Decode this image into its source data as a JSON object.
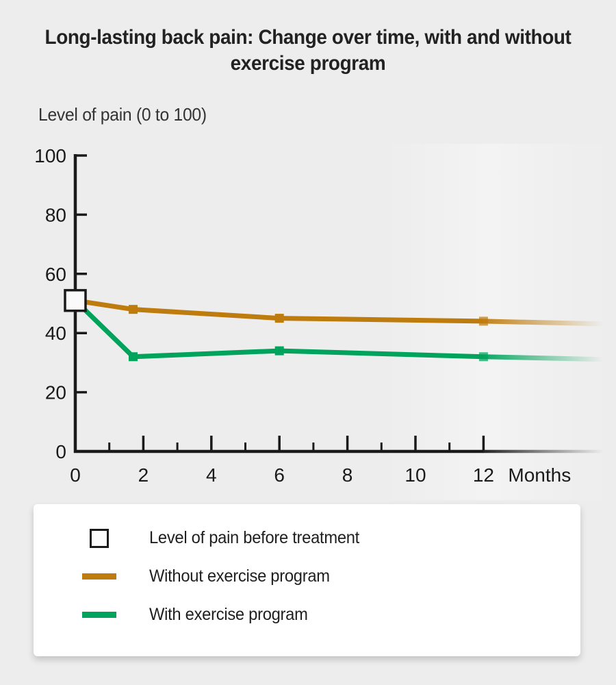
{
  "colors": {
    "background": "#ededed",
    "axis": "#1a1a1a",
    "without_exercise": "#bf7c0e",
    "with_exercise": "#00a35c",
    "baseline_square_fill": "#fafafa",
    "legend_background": "#ffffff"
  },
  "chart_data": {
    "type": "line",
    "title": "Long-lasting back pain: Change over time, with and without exercise program",
    "ylabel": "Level of pain (0 to 100)",
    "xlabel": "Months",
    "xlim": [
      0,
      12
    ],
    "ylim": [
      0,
      100
    ],
    "x_major_ticks": [
      0,
      2,
      4,
      6,
      8,
      10,
      12
    ],
    "x_minor_ticks": [
      1,
      3,
      5,
      7,
      9,
      11
    ],
    "y_ticks": [
      0,
      20,
      40,
      60,
      80,
      100
    ],
    "grid": false,
    "legend_position": "bottom",
    "baseline_point": {
      "label": "Level of pain before treatment",
      "x": 0,
      "y": 51,
      "marker": "open-square"
    },
    "series": [
      {
        "name": "Without exercise program",
        "color": "#bf7c0e",
        "x": [
          0,
          1.7,
          6,
          12
        ],
        "values": [
          51,
          48,
          45,
          44
        ],
        "fade_out_after_last_point": true
      },
      {
        "name": "With exercise program",
        "color": "#00a35c",
        "x": [
          0,
          1.7,
          6,
          12
        ],
        "values": [
          51,
          32,
          34,
          32
        ],
        "fade_out_after_last_point": true
      }
    ]
  },
  "legend": {
    "items": [
      {
        "swatch": "open-square",
        "color": "#1a1a1a",
        "label": "Level of pain before treatment"
      },
      {
        "swatch": "line",
        "color": "#bf7c0e",
        "label": "Without exercise program"
      },
      {
        "swatch": "line",
        "color": "#00a35c",
        "label": "With exercise program"
      }
    ]
  }
}
